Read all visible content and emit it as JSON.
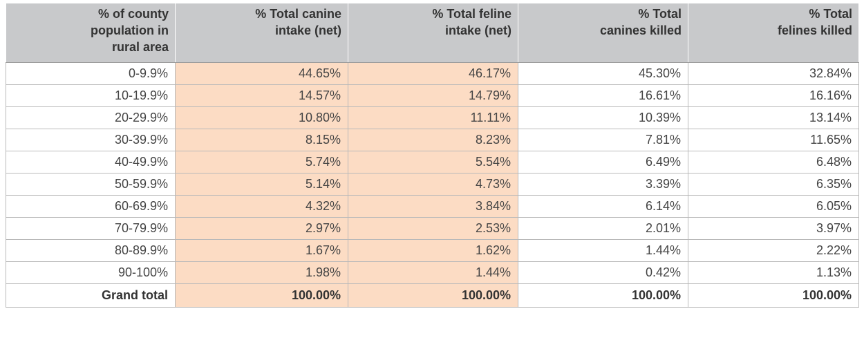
{
  "chart_data": {
    "type": "table",
    "columns": [
      "% of county population in rural area",
      "% Total canine intake (net)",
      "% Total feline intake (net)",
      "% Total canines killed",
      "% Total felines killed"
    ],
    "header_lines": [
      [
        "% of county",
        "population in",
        "rural area"
      ],
      [
        "% Total canine",
        "intake (net)"
      ],
      [
        "% Total feline",
        "intake (net)"
      ],
      [
        "% Total",
        "canines killed"
      ],
      [
        "% Total",
        "felines killed"
      ]
    ],
    "highlighted_columns": [
      1,
      2
    ],
    "highlight_color": "#fcdcc4",
    "header_color": "#c8c9cb",
    "rows": [
      [
        "0-9.9%",
        "44.65%",
        "46.17%",
        "45.30%",
        "32.84%"
      ],
      [
        "10-19.9%",
        "14.57%",
        "14.79%",
        "16.61%",
        "16.16%"
      ],
      [
        "20-29.9%",
        "10.80%",
        "11.11%",
        "10.39%",
        "13.14%"
      ],
      [
        "30-39.9%",
        "8.15%",
        "8.23%",
        "7.81%",
        "11.65%"
      ],
      [
        "40-49.9%",
        "5.74%",
        "5.54%",
        "6.49%",
        "6.48%"
      ],
      [
        "50-59.9%",
        "5.14%",
        "4.73%",
        "3.39%",
        "6.35%"
      ],
      [
        "60-69.9%",
        "4.32%",
        "3.84%",
        "6.14%",
        "6.05%"
      ],
      [
        "70-79.9%",
        "2.97%",
        "2.53%",
        "2.01%",
        "3.97%"
      ],
      [
        "80-89.9%",
        "1.67%",
        "1.62%",
        "1.44%",
        "2.22%"
      ],
      [
        "90-100%",
        "1.98%",
        "1.44%",
        "0.42%",
        "1.13%"
      ]
    ],
    "total_row": [
      "Grand total",
      "100.00%",
      "100.00%",
      "100.00%",
      "100.00%"
    ]
  }
}
